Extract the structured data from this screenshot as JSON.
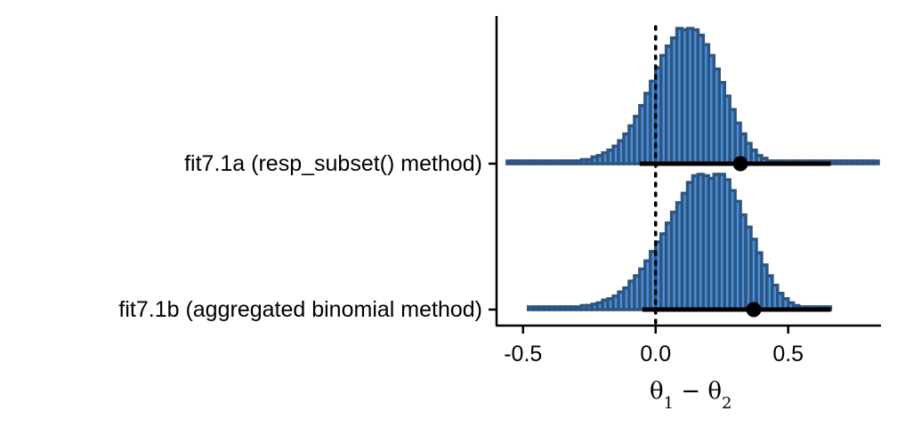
{
  "chart_data": {
    "type": "histogram",
    "title": "",
    "xlabel": "θ₁ − θ₂",
    "xlabel_main": "θ",
    "xlabel_sub1": "1",
    "xlabel_minus": " − ",
    "xlabel_sub2": "2",
    "ylabel": "",
    "xlim": [
      -0.6,
      0.85
    ],
    "xticks": [
      -0.5,
      0.0,
      0.5
    ],
    "xtick_labels": [
      "-0.5",
      "0.0",
      "0.5"
    ],
    "reference_line": 0,
    "bin_width": 0.02,
    "series": [
      {
        "name": "fit7.1b (aggregated binomial method)",
        "bins_start": -0.48,
        "heights": [
          0.01,
          0.01,
          0.01,
          0.01,
          0.01,
          0.01,
          0.01,
          0.02,
          0.02,
          0.02,
          0.03,
          0.03,
          0.04,
          0.05,
          0.07,
          0.08,
          0.1,
          0.13,
          0.16,
          0.21,
          0.25,
          0.3,
          0.36,
          0.43,
          0.5,
          0.56,
          0.64,
          0.72,
          0.79,
          0.86,
          0.94,
          0.99,
          1.0,
          0.99,
          0.97,
          1.0,
          1.0,
          0.96,
          0.88,
          0.8,
          0.7,
          0.61,
          0.52,
          0.42,
          0.33,
          0.25,
          0.18,
          0.12,
          0.08,
          0.05,
          0.03,
          0.02,
          0.01,
          0.01,
          0.01,
          0.01,
          0.01
        ],
        "point_estimate": 0.37,
        "interval": [
          -0.05,
          0.66
        ]
      },
      {
        "name": "fit7.1a (resp_subset() method)",
        "bins_start": -0.56,
        "heights": [
          0.01,
          0.01,
          0.01,
          0.01,
          0.01,
          0.01,
          0.01,
          0.01,
          0.01,
          0.01,
          0.01,
          0.02,
          0.02,
          0.02,
          0.03,
          0.03,
          0.05,
          0.06,
          0.08,
          0.1,
          0.13,
          0.17,
          0.22,
          0.28,
          0.35,
          0.43,
          0.52,
          0.61,
          0.71,
          0.8,
          0.87,
          0.93,
          1.0,
          0.99,
          1.0,
          0.99,
          0.95,
          0.88,
          0.8,
          0.7,
          0.6,
          0.5,
          0.4,
          0.3,
          0.22,
          0.15,
          0.1,
          0.06,
          0.04,
          0.02,
          0.01,
          0.01,
          0.01,
          0.01,
          0.01,
          0.01,
          0.01,
          0.01,
          0.01,
          0.01,
          0.01,
          0.01,
          0.01,
          0.01,
          0.01,
          0.01,
          0.01,
          0.01,
          0.01,
          0.01
        ],
        "point_estimate": 0.32,
        "interval": [
          -0.06,
          0.66
        ]
      }
    ],
    "colors": {
      "fill": "#4a90d9",
      "outline": "#2e5480",
      "interval": "#000000",
      "axis": "#000000"
    }
  }
}
